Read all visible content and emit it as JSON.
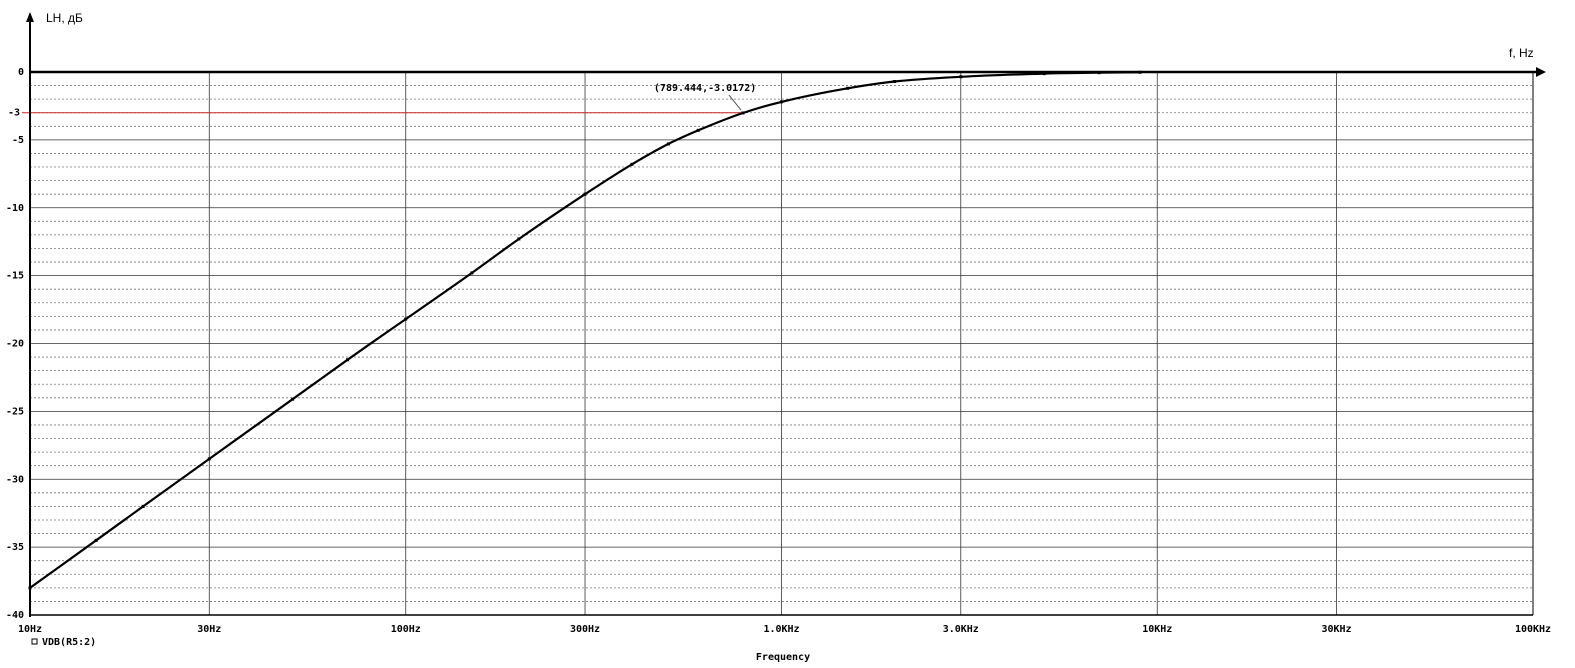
{
  "chart_data": {
    "type": "line",
    "x_scale": "log",
    "xlim": [
      10,
      100000
    ],
    "ylim": [
      -40,
      0
    ],
    "ylabel": "LH, дБ",
    "xlabel_arrow": "f, Hz",
    "xlabel": "Frequency",
    "x_ticks": [
      {
        "value": 10,
        "label": "10Hz"
      },
      {
        "value": 30,
        "label": "30Hz"
      },
      {
        "value": 100,
        "label": "100Hz"
      },
      {
        "value": 300,
        "label": "300Hz"
      },
      {
        "value": 1000,
        "label": "1.0KHz"
      },
      {
        "value": 3000,
        "label": "3.0KHz"
      },
      {
        "value": 10000,
        "label": "10KHz"
      },
      {
        "value": 30000,
        "label": "30KHz"
      },
      {
        "value": 100000,
        "label": "100KHz"
      }
    ],
    "y_ticks": [
      {
        "value": 0,
        "label": "0"
      },
      {
        "value": -5,
        "label": "-5"
      },
      {
        "value": -10,
        "label": "-10"
      },
      {
        "value": -15,
        "label": "-15"
      },
      {
        "value": -20,
        "label": "-20"
      },
      {
        "value": -25,
        "label": "-25"
      },
      {
        "value": -30,
        "label": "-30"
      },
      {
        "value": -35,
        "label": "-35"
      },
      {
        "value": -40,
        "label": "-40"
      }
    ],
    "grid": true,
    "legend": "bottom-left",
    "series": [
      {
        "name": "VDB(R5:2)",
        "color": "#000000",
        "x": [
          10,
          15,
          20,
          30,
          50,
          70,
          100,
          150,
          200,
          300,
          400,
          500,
          600,
          789.444,
          1000,
          1500,
          2000,
          3000,
          5000,
          7000,
          9000
        ],
        "y": [
          -38.0,
          -34.5,
          -32.0,
          -28.5,
          -24.1,
          -21.2,
          -18.2,
          -14.8,
          -12.3,
          -9.0,
          -6.8,
          -5.3,
          -4.3,
          -3.0172,
          -2.2,
          -1.2,
          -0.7,
          -0.35,
          -0.12,
          -0.05,
          -0.02
        ]
      }
    ],
    "reference_line": {
      "y": -3,
      "label": "-3",
      "color": "#cc2222"
    },
    "annotation": {
      "text": "(789.444,-3.0172)",
      "x": 789.444,
      "y": -3.0172
    }
  }
}
